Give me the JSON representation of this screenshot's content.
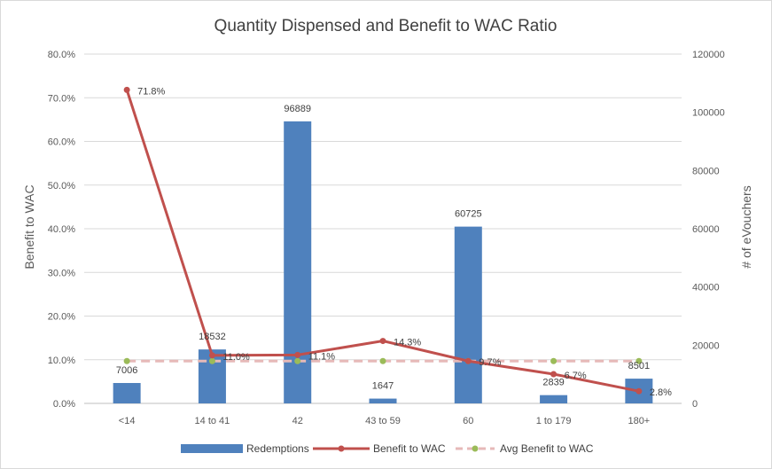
{
  "chart_data": {
    "type": "bar",
    "title": "Quantity Dispensed and Benefit to WAC Ratio",
    "categories": [
      "<14",
      "14 to 41",
      "42",
      "43 to 59",
      "60",
      "1 to 179",
      "180+"
    ],
    "series": [
      {
        "name": "Redemptions",
        "type": "bar",
        "axis": "right",
        "color": "#4f81bd",
        "values": [
          7006,
          18532,
          96889,
          1647,
          60725,
          2839,
          8501
        ],
        "labels": [
          "7006",
          "18532",
          "96889",
          "1647",
          "60725",
          "2839",
          "8501"
        ]
      },
      {
        "name": "Benefit to WAC",
        "type": "line",
        "axis": "left",
        "color": "#c0504d",
        "values": [
          71.8,
          11.0,
          11.1,
          14.3,
          9.7,
          6.7,
          2.8
        ],
        "labels": [
          "71.8%",
          "11.0%",
          "11.1%",
          "14.3%",
          "9.7%",
          "6.7%",
          "2.8%"
        ]
      },
      {
        "name": "Avg Benefit to WAC",
        "type": "line",
        "style": "dashed",
        "axis": "left",
        "color": "#e6b9b8",
        "marker_color": "#9bbb59",
        "values": [
          9.7,
          9.7,
          9.7,
          9.7,
          9.7,
          9.7,
          9.7
        ]
      }
    ],
    "ylabel": "Benefit to WAC",
    "ylabel_right": "# of eVouchers",
    "ylim": [
      0,
      80
    ],
    "ylim_right": [
      0,
      120000
    ],
    "yticks": [
      "0.0%",
      "10.0%",
      "20.0%",
      "30.0%",
      "40.0%",
      "50.0%",
      "60.0%",
      "70.0%",
      "80.0%"
    ],
    "yticks_right": [
      "0",
      "20000",
      "40000",
      "60000",
      "80000",
      "100000",
      "120000"
    ],
    "grid": true,
    "legend": "bottom"
  }
}
